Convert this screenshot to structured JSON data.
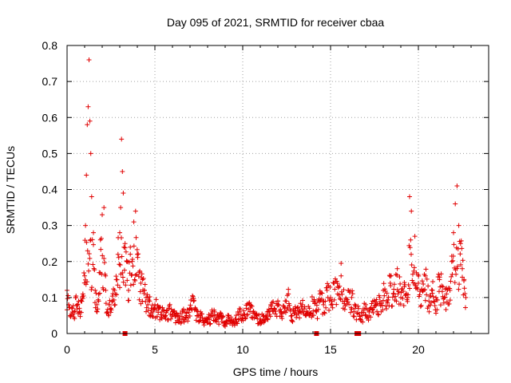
{
  "chart_data": {
    "type": "scatter",
    "title": "Day 095 of 2021, SRMTID for receiver cbaa",
    "xlabel": "GPS time / hours",
    "ylabel": "SRMTID / TECUs",
    "xlim": [
      0,
      24
    ],
    "ylim": [
      0,
      0.8
    ],
    "xticks": [
      0,
      5,
      10,
      15,
      20
    ],
    "xtick_labels": [
      "0",
      "5",
      "10",
      "15",
      "20"
    ],
    "yticks": [
      0,
      0.1,
      0.2,
      0.3,
      0.4,
      0.5,
      0.6,
      0.7,
      0.8
    ],
    "ytick_labels": [
      "0",
      "0.1",
      "0.2",
      "0.3",
      "0.4",
      "0.5",
      "0.6",
      "0.7",
      "0.8"
    ],
    "grid": true,
    "marker": "+",
    "marker_color": "#e00000",
    "gap_marker_color": "#e00000",
    "series": [
      {
        "name": "SRMTID",
        "x": [
          0.0,
          0.1,
          0.2,
          0.3,
          0.4,
          0.5,
          0.6,
          0.7,
          0.8,
          0.9,
          1.0,
          1.05,
          1.1,
          1.15,
          1.2,
          1.25,
          1.3,
          1.35,
          1.4,
          1.5,
          1.6,
          1.7,
          1.8,
          1.9,
          2.0,
          2.1,
          2.2,
          2.3,
          2.4,
          2.5,
          2.6,
          2.7,
          2.8,
          2.9,
          3.0,
          3.05,
          3.1,
          3.15,
          3.2,
          3.3,
          3.4,
          3.5,
          3.6,
          3.7,
          3.8,
          3.9,
          4.0,
          4.1,
          4.2,
          4.3,
          4.4,
          4.5,
          4.6,
          4.7,
          4.8,
          4.9,
          5.0,
          5.2,
          5.4,
          5.6,
          5.8,
          6.0,
          6.2,
          6.4,
          6.6,
          6.8,
          7.0,
          7.2,
          7.4,
          7.6,
          7.8,
          8.0,
          8.2,
          8.4,
          8.6,
          8.8,
          9.0,
          9.2,
          9.4,
          9.6,
          9.8,
          10.0,
          10.2,
          10.4,
          10.6,
          10.8,
          11.0,
          11.2,
          11.4,
          11.6,
          11.8,
          12.0,
          12.2,
          12.4,
          12.6,
          12.8,
          13.0,
          13.2,
          13.4,
          13.6,
          13.8,
          14.0,
          14.2,
          14.4,
          14.6,
          14.8,
          15.0,
          15.2,
          15.4,
          15.6,
          15.8,
          16.0,
          16.2,
          16.4,
          16.8,
          17.0,
          17.2,
          17.4,
          17.6,
          17.8,
          18.0,
          18.2,
          18.4,
          18.6,
          18.8,
          19.0,
          19.2,
          19.4,
          19.5,
          19.6,
          19.8,
          20.0,
          20.2,
          20.4,
          20.6,
          20.8,
          21.0,
          21.2,
          21.4,
          21.6,
          21.8,
          21.9,
          22.0,
          22.1,
          22.2,
          22.3,
          22.4,
          22.5,
          22.6,
          22.7
        ],
        "y": [
          0.12,
          0.08,
          0.05,
          0.07,
          0.06,
          0.1,
          0.08,
          0.07,
          0.09,
          0.11,
          0.16,
          0.3,
          0.44,
          0.58,
          0.63,
          0.76,
          0.59,
          0.5,
          0.38,
          0.28,
          0.12,
          0.08,
          0.09,
          0.26,
          0.33,
          0.35,
          0.12,
          0.06,
          0.08,
          0.07,
          0.09,
          0.12,
          0.15,
          0.22,
          0.28,
          0.35,
          0.54,
          0.45,
          0.39,
          0.25,
          0.2,
          0.12,
          0.24,
          0.2,
          0.31,
          0.34,
          0.22,
          0.17,
          0.14,
          0.15,
          0.12,
          0.1,
          0.08,
          0.09,
          0.07,
          0.06,
          0.08,
          0.07,
          0.06,
          0.05,
          0.07,
          0.06,
          0.05,
          0.04,
          0.06,
          0.05,
          0.07,
          0.09,
          0.05,
          0.06,
          0.03,
          0.04,
          0.05,
          0.06,
          0.04,
          0.05,
          0.03,
          0.05,
          0.03,
          0.04,
          0.06,
          0.05,
          0.07,
          0.08,
          0.06,
          0.05,
          0.04,
          0.05,
          0.06,
          0.08,
          0.07,
          0.09,
          0.06,
          0.07,
          0.11,
          0.05,
          0.07,
          0.06,
          0.08,
          0.05,
          0.07,
          0.09,
          0.06,
          0.11,
          0.08,
          0.12,
          0.1,
          0.14,
          0.11,
          0.16,
          0.09,
          0.12,
          0.1,
          0.07,
          0.05,
          0.08,
          0.06,
          0.09,
          0.08,
          0.1,
          0.12,
          0.09,
          0.14,
          0.11,
          0.18,
          0.1,
          0.13,
          0.1,
          0.38,
          0.34,
          0.27,
          0.14,
          0.12,
          0.16,
          0.09,
          0.12,
          0.1,
          0.15,
          0.13,
          0.11,
          0.12,
          0.2,
          0.28,
          0.36,
          0.41,
          0.3,
          0.25,
          0.18,
          0.15,
          0.1
        ],
        "extra_noise_band": [
          0.03,
          0.13
        ]
      }
    ],
    "gap_markers_x": [
      3.3,
      14.2,
      16.5,
      16.6
    ]
  }
}
